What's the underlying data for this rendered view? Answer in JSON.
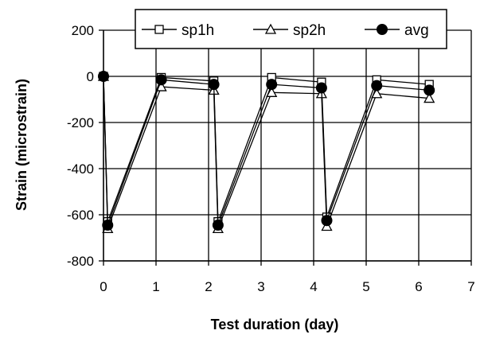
{
  "chart_data": {
    "type": "line",
    "title": "",
    "xlabel": "Test duration (day)",
    "ylabel": "Strain (microstrain)",
    "xlim": [
      0,
      7
    ],
    "ylim": [
      -800,
      200
    ],
    "x_ticks": [
      0,
      1,
      2,
      3,
      4,
      5,
      6,
      7
    ],
    "y_ticks": [
      -800,
      -600,
      -400,
      -200,
      0,
      200
    ],
    "x_tick_labels": [
      "0",
      "1",
      "2",
      "3",
      "4",
      "5",
      "6",
      "7"
    ],
    "y_tick_labels": [
      "-800",
      "-600",
      "-400",
      "-200",
      "0",
      "200"
    ],
    "grid": true,
    "legend_position": "top",
    "series": [
      {
        "name": "sp1h",
        "marker": "open-square",
        "color": "#000000",
        "x": [
          0,
          0.08,
          1.1,
          2.1,
          2.18,
          3.2,
          4.15,
          4.25,
          5.2,
          6.2
        ],
        "y": [
          0,
          -630,
          -5,
          -20,
          -630,
          -5,
          -25,
          -610,
          -15,
          -35
        ]
      },
      {
        "name": "sp2h",
        "marker": "open-triangle",
        "color": "#000000",
        "x": [
          0,
          0.08,
          1.1,
          2.1,
          2.18,
          3.2,
          4.15,
          4.25,
          5.2,
          6.2
        ],
        "y": [
          0,
          -660,
          -45,
          -60,
          -660,
          -70,
          -75,
          -650,
          -75,
          -95
        ]
      },
      {
        "name": "avg",
        "marker": "filled-circle",
        "color": "#000000",
        "x": [
          0,
          0.08,
          1.1,
          2.1,
          2.18,
          3.2,
          4.15,
          4.25,
          5.2,
          6.2
        ],
        "y": [
          0,
          -645,
          -15,
          -35,
          -645,
          -35,
          -50,
          -625,
          -40,
          -60
        ]
      }
    ]
  }
}
